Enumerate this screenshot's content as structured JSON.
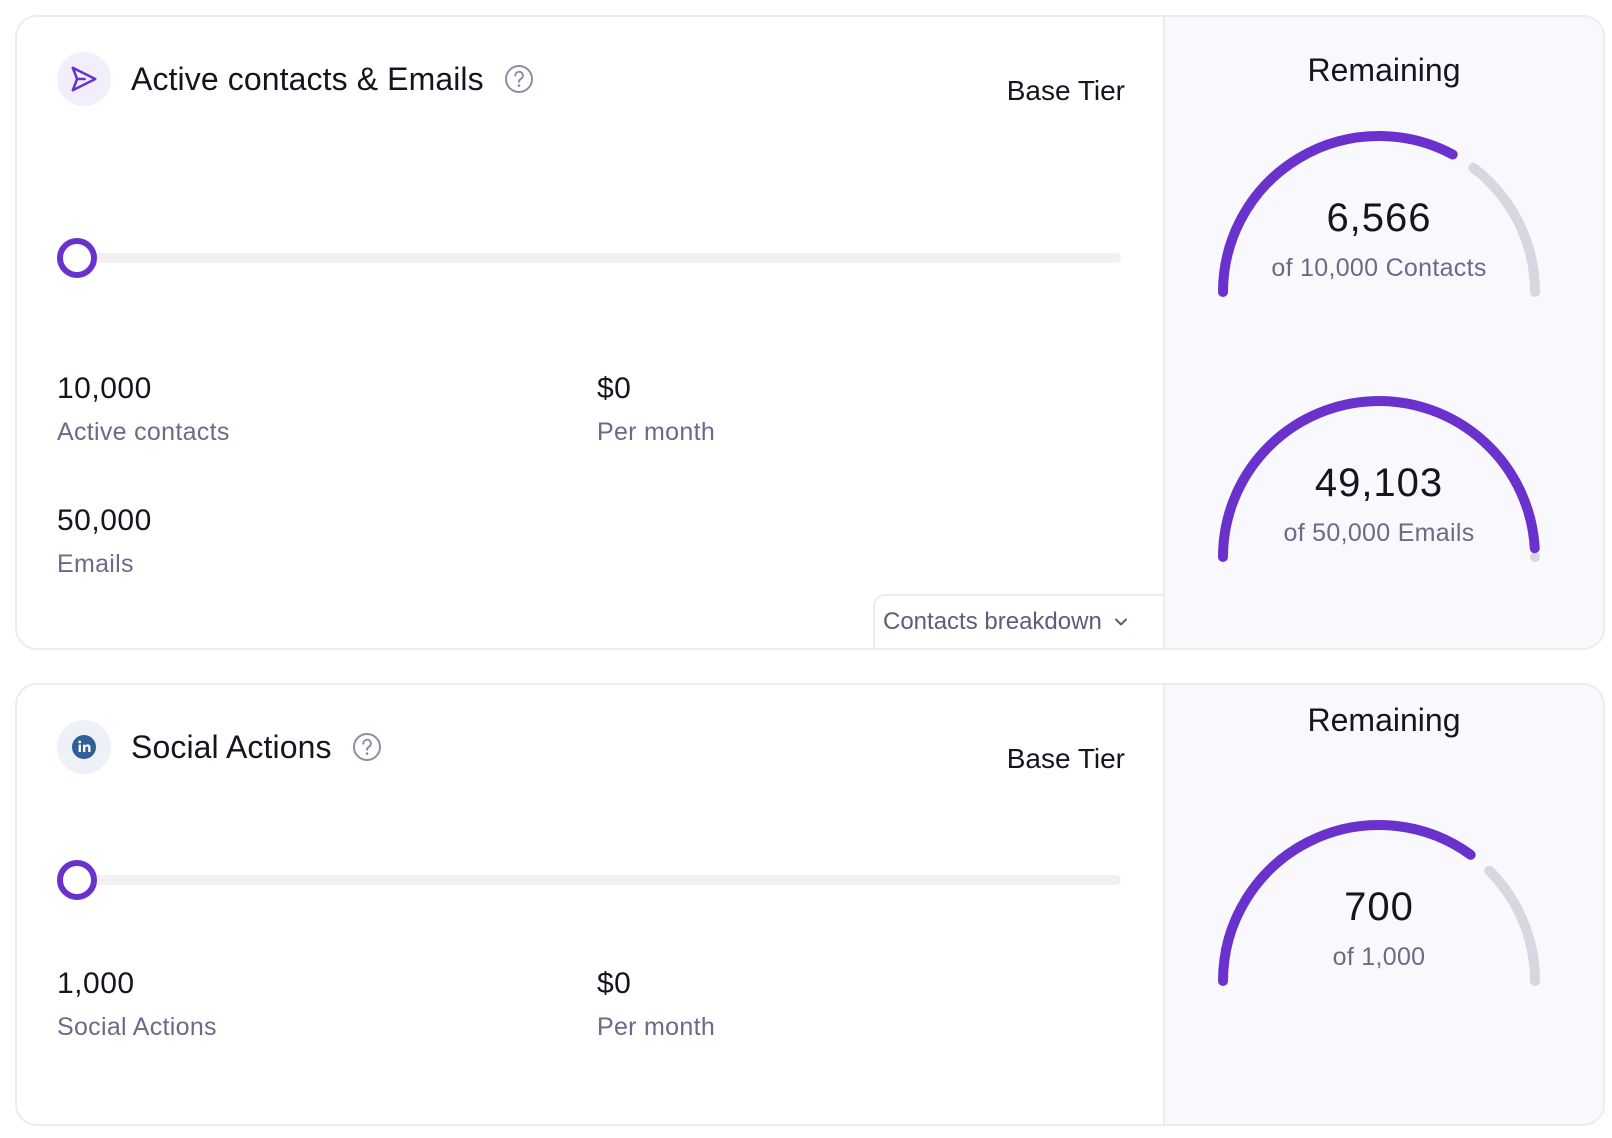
{
  "colors": {
    "accent": "#6a32cc",
    "gauge_track": "#d8d7e0",
    "linkedin": "#2f5f97"
  },
  "cards": [
    {
      "title": "Active contacts & Emails",
      "icon": "send-icon",
      "tier": "Base Tier",
      "slider_level": 0,
      "stats": [
        {
          "value": "10,000",
          "label": "Active contacts"
        },
        {
          "value": "$0",
          "label": "Per month"
        },
        {
          "value": "50,000",
          "label": "Emails"
        }
      ],
      "breakdown_label": "Contacts breakdown",
      "remaining_title": "Remaining",
      "gauges": [
        {
          "value": "6,566",
          "subtitle": "of 10,000 Contacts",
          "remaining": 6566,
          "total": 10000
        },
        {
          "value": "49,103",
          "subtitle": "of 50,000 Emails",
          "remaining": 49103,
          "total": 50000
        }
      ]
    },
    {
      "title": "Social Actions",
      "icon": "linkedin-icon",
      "tier": "Base Tier",
      "slider_level": 0,
      "stats": [
        {
          "value": "1,000",
          "label": "Social Actions"
        },
        {
          "value": "$0",
          "label": "Per month"
        }
      ],
      "remaining_title": "Remaining",
      "gauges": [
        {
          "value": "700",
          "subtitle": "of 1,000",
          "remaining": 700,
          "total": 1000
        }
      ]
    }
  ]
}
